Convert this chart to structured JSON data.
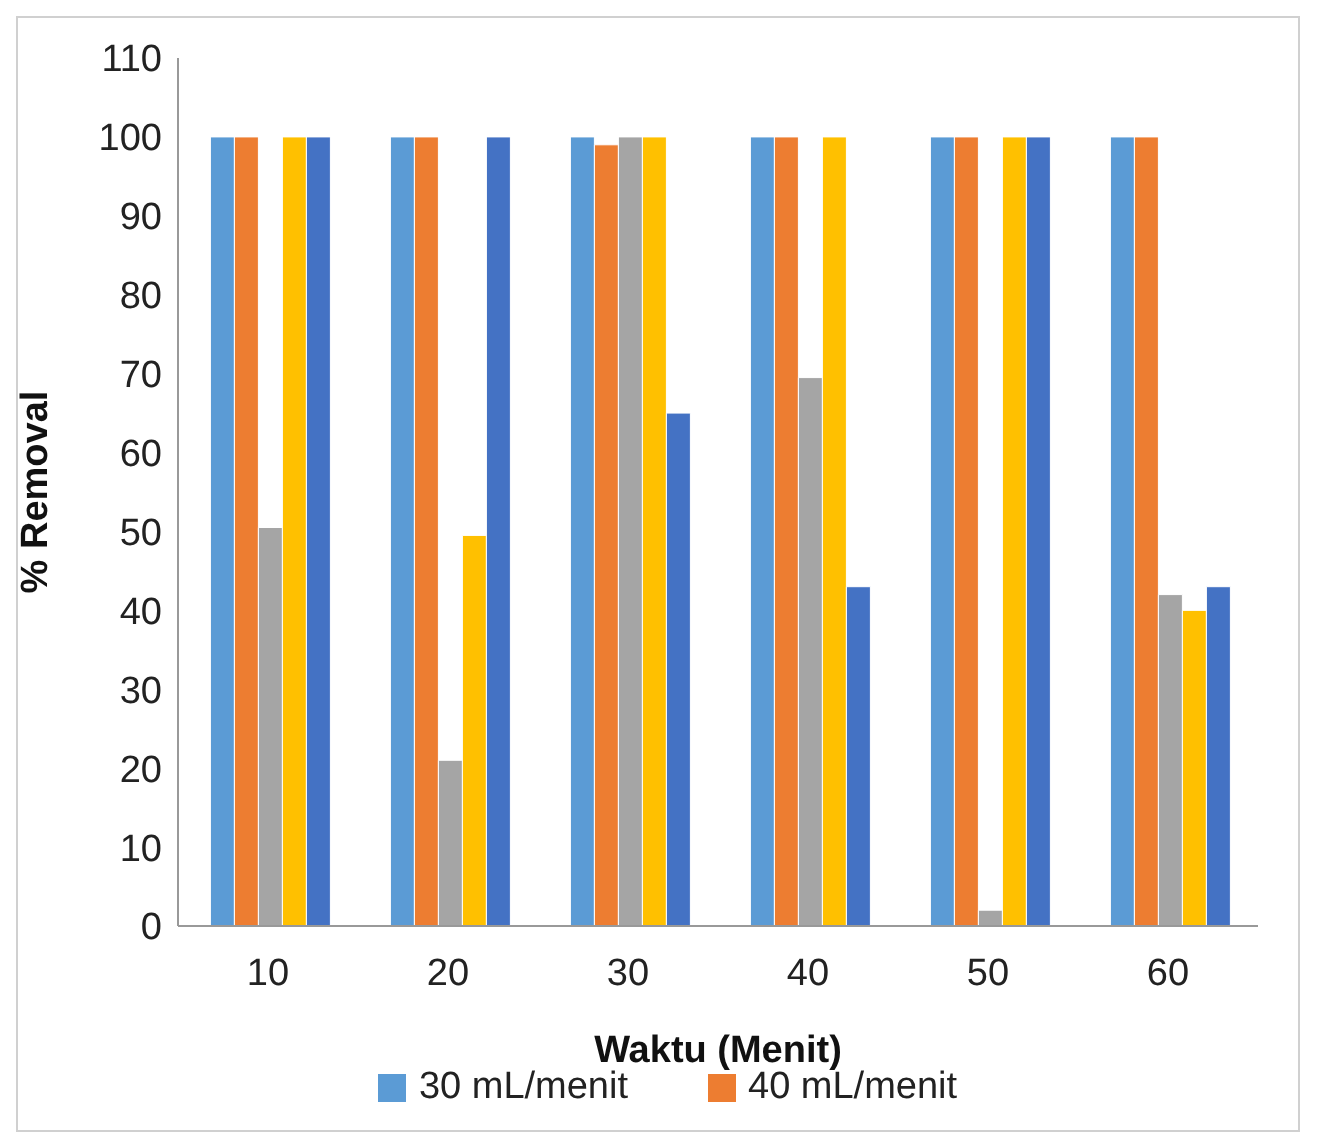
{
  "chart_data": {
    "type": "bar",
    "xlabel": "Waktu (Menit)",
    "ylabel": "% Removal",
    "categories": [
      "10",
      "20",
      "30",
      "40",
      "50",
      "60"
    ],
    "series": [
      {
        "name": "30 mL/menit",
        "color": "#5b9bd5",
        "values": [
          100,
          100,
          100,
          100,
          100,
          100
        ]
      },
      {
        "name": "40 mL/menit",
        "color": "#ed7d31",
        "values": [
          100,
          100,
          99,
          100,
          100,
          100
        ]
      },
      {
        "color": "#a5a5a5",
        "values": [
          50.5,
          21,
          100,
          69.5,
          2,
          42
        ]
      },
      {
        "color": "#ffc000",
        "values": [
          100,
          49.5,
          100,
          100,
          100,
          40
        ]
      },
      {
        "color": "#4472c4",
        "values": [
          100,
          100,
          65,
          43,
          100,
          43
        ]
      }
    ],
    "ylim": [
      0,
      110
    ],
    "yticks": [
      0,
      10,
      20,
      30,
      40,
      50,
      60,
      70,
      80,
      90,
      100,
      110
    ],
    "grid": false,
    "legend": "bottom"
  }
}
